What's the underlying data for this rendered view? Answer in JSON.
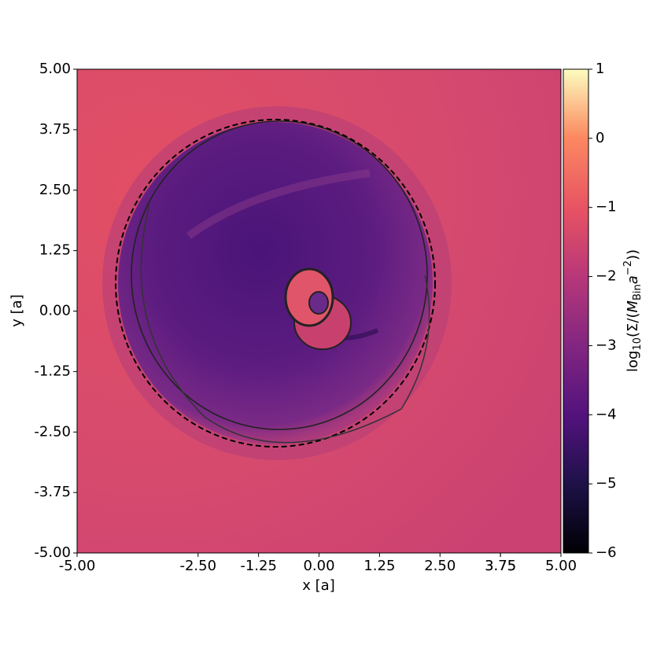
{
  "chart_data": {
    "type": "heatmap",
    "xlabel": "x [a]",
    "ylabel": "y [a]",
    "xlim": [
      -5,
      5
    ],
    "ylim": [
      -5,
      5
    ],
    "xticks": [
      {
        "value": -5,
        "label": "-5.00"
      },
      3.75,
      {
        "value": -2.5,
        "label": "-2.50"
      },
      -1.25,
      {
        "value": 0,
        "label": "0.00"
      },
      1.25,
      {
        "value": 2.5,
        "label": "2.50"
      },
      3.75,
      {
        "value": 5,
        "label": "5.00"
      }
    ],
    "yticks": [
      {
        "value": -5,
        "label": "-5.00"
      },
      -3.75,
      {
        "value": -2.5,
        "label": "-2.50"
      },
      -1.25,
      {
        "value": 0,
        "label": "0.00"
      },
      1.25,
      {
        "value": 2.5,
        "label": "2.50"
      },
      3.75,
      {
        "value": 5,
        "label": "5.00"
      }
    ],
    "colormap": "magma",
    "colorbar": {
      "lim": [
        -6,
        1
      ],
      "ticks": [
        {
          "value": -6,
          "label": "−6"
        },
        {
          "value": -5,
          "label": "−5"
        },
        {
          "value": -4,
          "label": "−4"
        },
        {
          "value": -3,
          "label": "−3"
        },
        {
          "value": -2,
          "label": "−2"
        },
        {
          "value": -1,
          "label": "−1"
        },
        0,
        1
      ],
      "label": [
        "log",
        "10",
        "(Σ/(",
        "M",
        "Bin",
        "a",
        "−2",
        "))"
      ]
    }
  }
}
